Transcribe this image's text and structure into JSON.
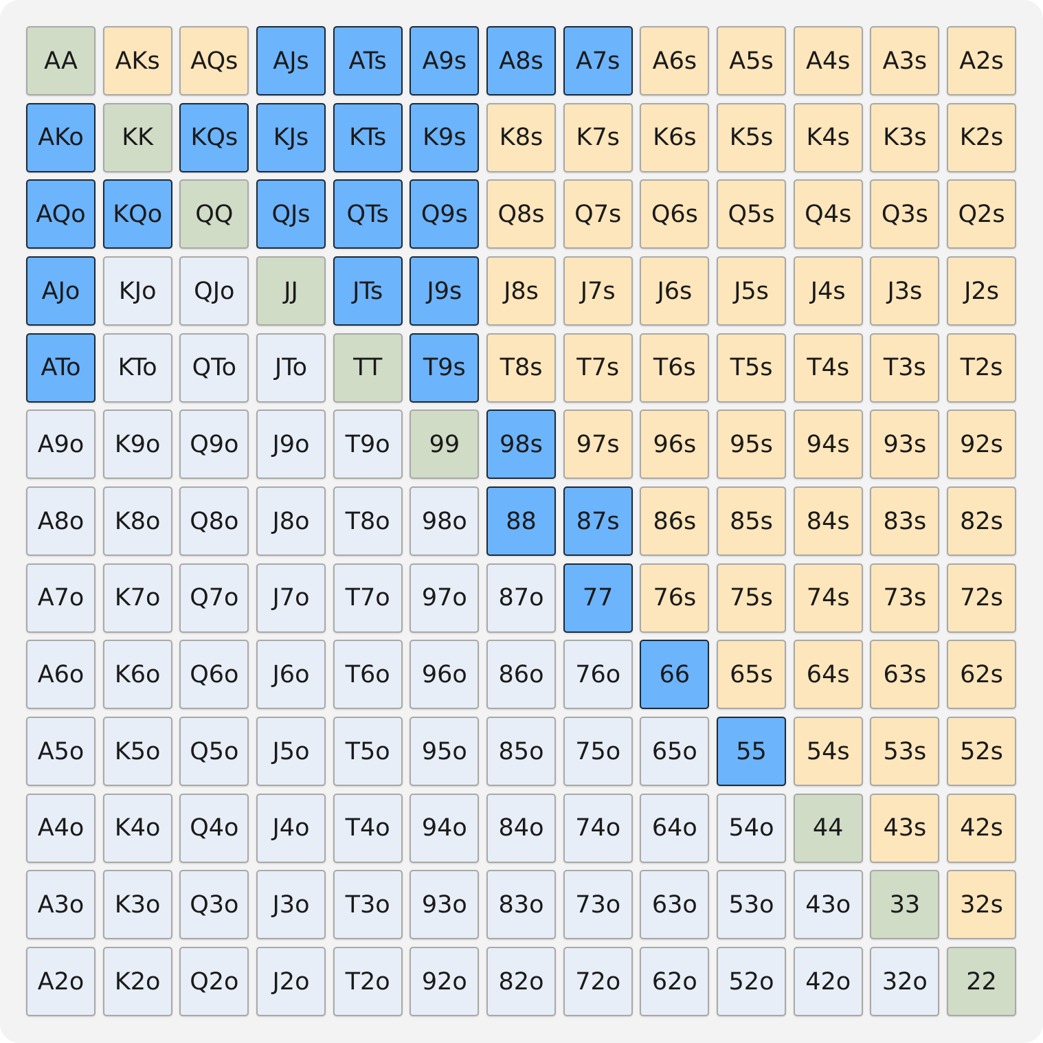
{
  "grid": {
    "rows": [
      [
        "AA",
        "AKs",
        "AQs",
        "AJs",
        "ATs",
        "A9s",
        "A8s",
        "A7s",
        "A6s",
        "A5s",
        "A4s",
        "A3s",
        "A2s"
      ],
      [
        "AKo",
        "KK",
        "KQs",
        "KJs",
        "KTs",
        "K9s",
        "K8s",
        "K7s",
        "K6s",
        "K5s",
        "K4s",
        "K3s",
        "K2s"
      ],
      [
        "AQo",
        "KQo",
        "QQ",
        "QJs",
        "QTs",
        "Q9s",
        "Q8s",
        "Q7s",
        "Q6s",
        "Q5s",
        "Q4s",
        "Q3s",
        "Q2s"
      ],
      [
        "AJo",
        "KJo",
        "QJo",
        "JJ",
        "JTs",
        "J9s",
        "J8s",
        "J7s",
        "J6s",
        "J5s",
        "J4s",
        "J3s",
        "J2s"
      ],
      [
        "ATo",
        "KTo",
        "QTo",
        "JTo",
        "TT",
        "T9s",
        "T8s",
        "T7s",
        "T6s",
        "T5s",
        "T4s",
        "T3s",
        "T2s"
      ],
      [
        "A9o",
        "K9o",
        "Q9o",
        "J9o",
        "T9o",
        "99",
        "98s",
        "97s",
        "96s",
        "95s",
        "94s",
        "93s",
        "92s"
      ],
      [
        "A8o",
        "K8o",
        "Q8o",
        "J8o",
        "T8o",
        "98o",
        "88",
        "87s",
        "86s",
        "85s",
        "84s",
        "83s",
        "82s"
      ],
      [
        "A7o",
        "K7o",
        "Q7o",
        "J7o",
        "T7o",
        "97o",
        "87o",
        "77",
        "76s",
        "75s",
        "74s",
        "73s",
        "72s"
      ],
      [
        "A6o",
        "K6o",
        "Q6o",
        "J6o",
        "T6o",
        "96o",
        "86o",
        "76o",
        "66",
        "65s",
        "64s",
        "63s",
        "62s"
      ],
      [
        "A5o",
        "K5o",
        "Q5o",
        "J5o",
        "T5o",
        "95o",
        "85o",
        "75o",
        "65o",
        "55",
        "54s",
        "53s",
        "52s"
      ],
      [
        "A4o",
        "K4o",
        "Q4o",
        "J4o",
        "T4o",
        "94o",
        "84o",
        "74o",
        "64o",
        "54o",
        "44",
        "43s",
        "42s"
      ],
      [
        "A3o",
        "K3o",
        "Q3o",
        "J3o",
        "T3o",
        "93o",
        "83o",
        "73o",
        "63o",
        "53o",
        "43o",
        "33",
        "32s"
      ],
      [
        "A2o",
        "K2o",
        "Q2o",
        "J2o",
        "T2o",
        "92o",
        "82o",
        "72o",
        "62o",
        "52o",
        "42o",
        "32o",
        "22"
      ]
    ],
    "selected": [
      [
        false,
        false,
        false,
        true,
        true,
        true,
        true,
        true,
        false,
        false,
        false,
        false,
        false
      ],
      [
        true,
        false,
        true,
        true,
        true,
        true,
        false,
        false,
        false,
        false,
        false,
        false,
        false
      ],
      [
        true,
        true,
        false,
        true,
        true,
        true,
        false,
        false,
        false,
        false,
        false,
        false,
        false
      ],
      [
        true,
        false,
        false,
        false,
        true,
        true,
        false,
        false,
        false,
        false,
        false,
        false,
        false
      ],
      [
        true,
        false,
        false,
        false,
        false,
        true,
        false,
        false,
        false,
        false,
        false,
        false,
        false
      ],
      [
        false,
        false,
        false,
        false,
        false,
        false,
        true,
        false,
        false,
        false,
        false,
        false,
        false
      ],
      [
        false,
        false,
        false,
        false,
        false,
        false,
        true,
        true,
        false,
        false,
        false,
        false,
        false
      ],
      [
        false,
        false,
        false,
        false,
        false,
        false,
        false,
        true,
        false,
        false,
        false,
        false,
        false
      ],
      [
        false,
        false,
        false,
        false,
        false,
        false,
        false,
        false,
        true,
        false,
        false,
        false,
        false
      ],
      [
        false,
        false,
        false,
        false,
        false,
        false,
        false,
        false,
        false,
        true,
        false,
        false,
        false
      ],
      [
        false,
        false,
        false,
        false,
        false,
        false,
        false,
        false,
        false,
        false,
        false,
        false,
        false
      ],
      [
        false,
        false,
        false,
        false,
        false,
        false,
        false,
        false,
        false,
        false,
        false,
        false,
        false
      ],
      [
        false,
        false,
        false,
        false,
        false,
        false,
        false,
        false,
        false,
        false,
        false,
        false,
        false
      ]
    ]
  }
}
